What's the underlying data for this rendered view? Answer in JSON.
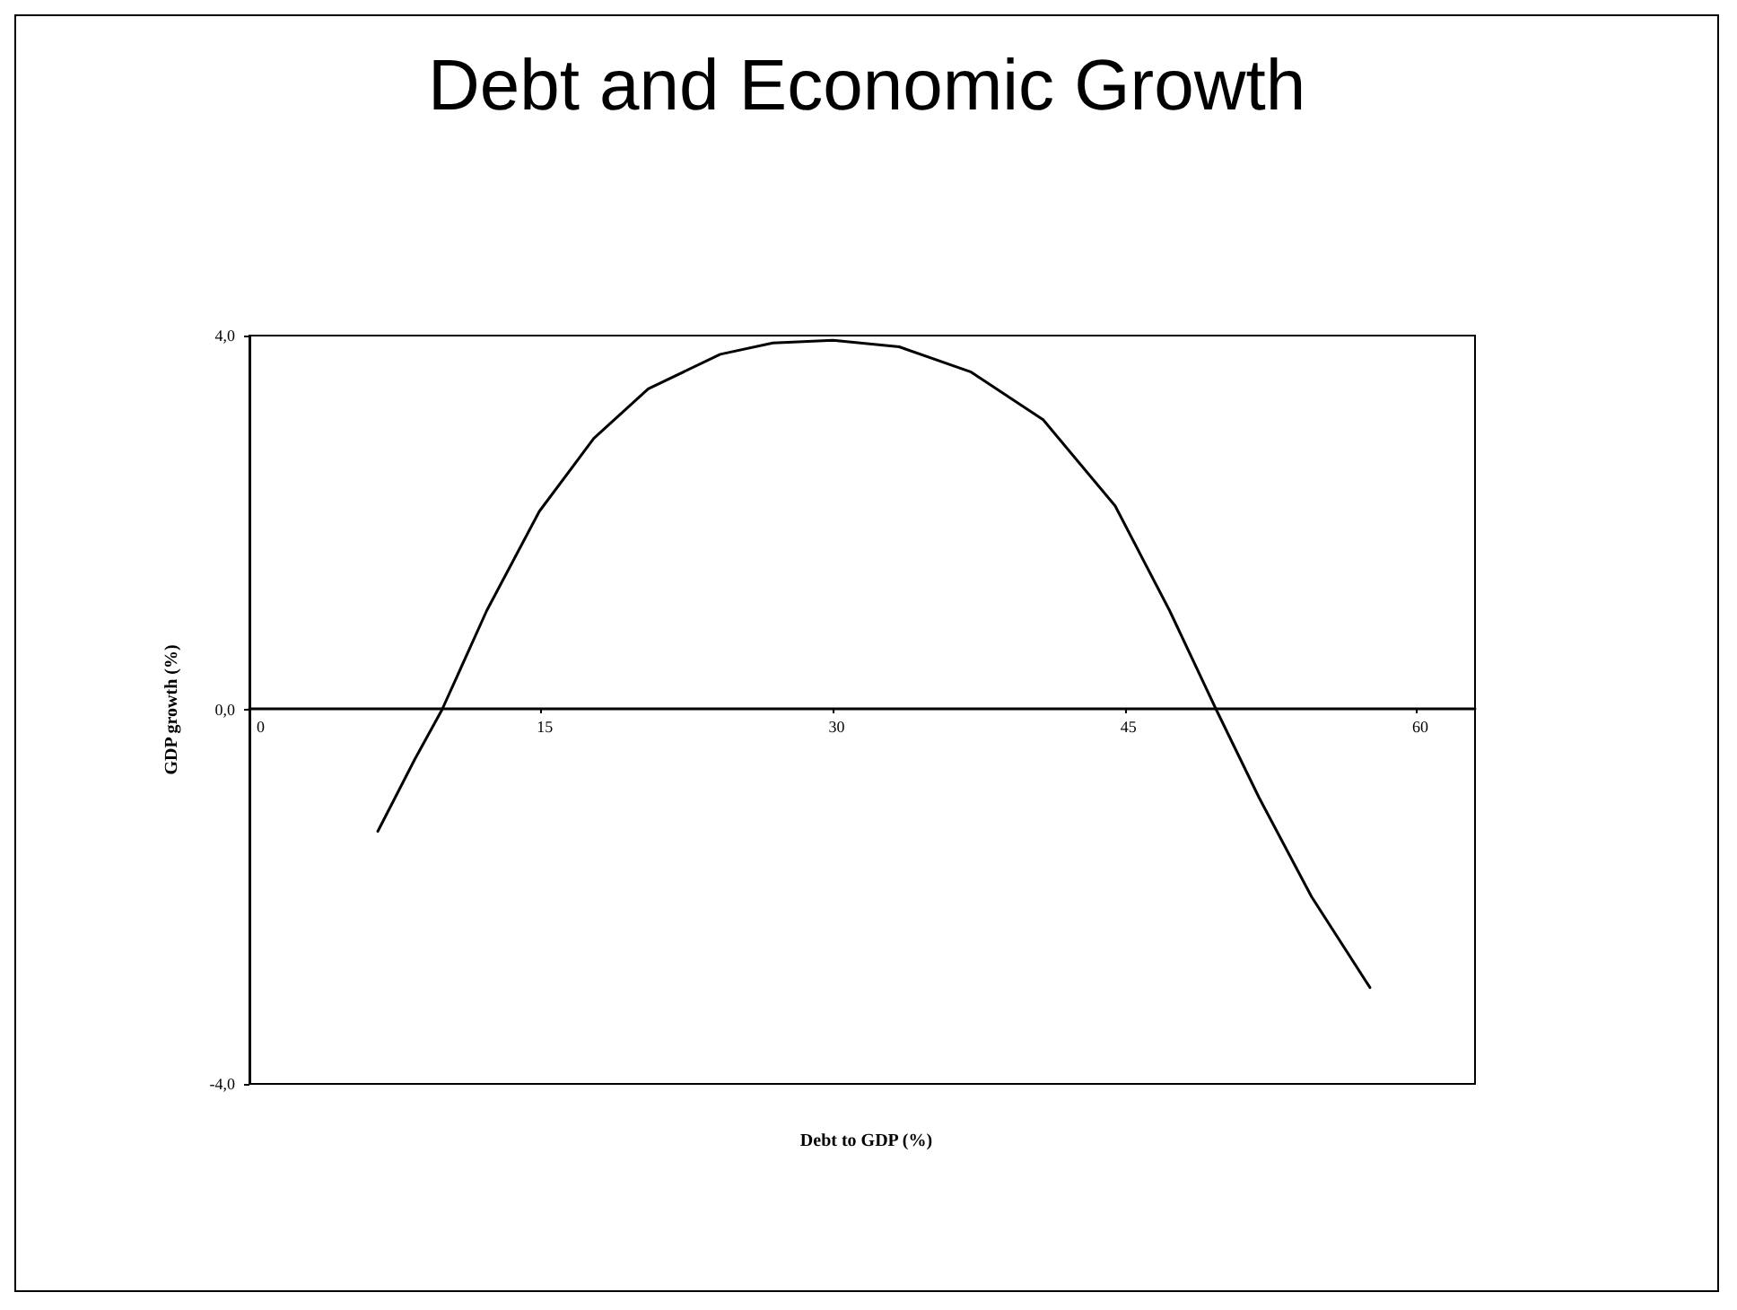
{
  "chart_data": {
    "type": "line",
    "title": "Debt and Economic Growth",
    "xlabel": "Debt to GDP (%)",
    "ylabel": "GDP growth (%)",
    "x": [
      6.6,
      8.5,
      9.9,
      12.2,
      14.9,
      17.7,
      20.5,
      24.2,
      26.9,
      30.0,
      33.4,
      37.1,
      40.8,
      44.5,
      47.3,
      49.7,
      51.9,
      54.6,
      57.6
    ],
    "series": [
      {
        "color": "#000000",
        "values": [
          -1.3,
          -0.53,
          0,
          1.06,
          2.12,
          2.9,
          3.43,
          3.8,
          3.92,
          3.95,
          3.88,
          3.61,
          3.1,
          2.18,
          1.06,
          0,
          -0.94,
          -2.0,
          -2.97
        ]
      }
    ],
    "xlim": [
      0,
      63
    ],
    "xticks": [
      0,
      15,
      30,
      45,
      60
    ],
    "ylim": [
      -4,
      4
    ],
    "yticks": [
      {
        "value": -4,
        "label": "-4,0"
      },
      {
        "value": 0,
        "label": "0,0"
      },
      {
        "value": 4,
        "label": "4,0"
      }
    ],
    "grid": false,
    "marker": "none",
    "line_style": "solid"
  }
}
